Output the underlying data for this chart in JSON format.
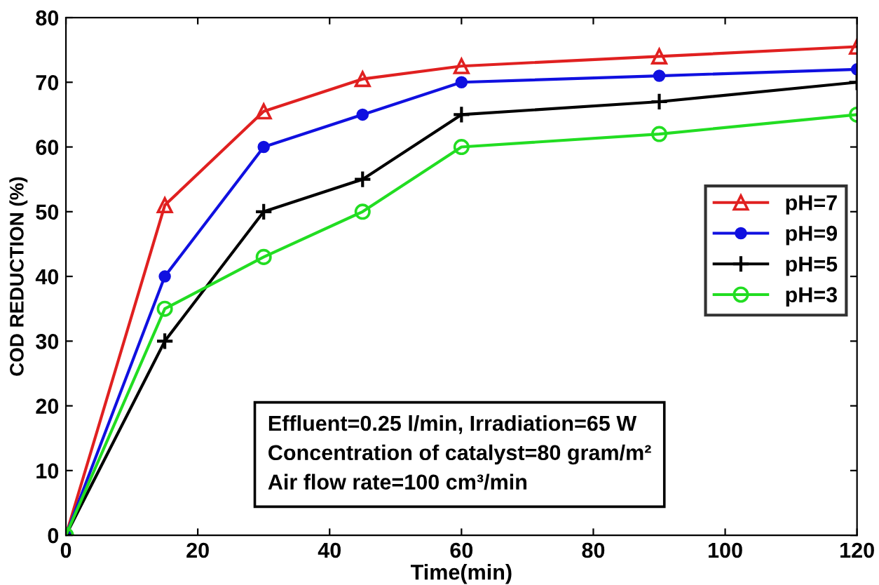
{
  "chart_data": {
    "type": "line",
    "xlabel": "Time(min)",
    "ylabel": "COD REDUCTION (%)",
    "x": [
      0,
      15,
      30,
      45,
      60,
      90,
      120
    ],
    "series": [
      {
        "name": "pH=7",
        "color": "#e02020",
        "marker": "triangle",
        "values": [
          0,
          51,
          65.5,
          70.5,
          72.5,
          74,
          75.5
        ]
      },
      {
        "name": "pH=9",
        "color": "#1010e0",
        "marker": "circle_filled",
        "values": [
          0,
          40,
          60,
          65,
          70,
          71,
          72
        ]
      },
      {
        "name": "pH=5",
        "color": "#000000",
        "marker": "plus",
        "values": [
          0,
          30,
          50,
          55,
          65,
          67,
          70
        ]
      },
      {
        "name": "pH=3",
        "color": "#22dd22",
        "marker": "circle",
        "values": [
          0,
          35,
          43,
          50,
          60,
          62,
          65
        ]
      }
    ],
    "xlim": [
      0,
      120
    ],
    "ylim": [
      0,
      80
    ],
    "xticks": [
      0,
      20,
      40,
      60,
      80,
      100,
      120
    ],
    "yticks": [
      0,
      10,
      20,
      30,
      40,
      50,
      60,
      70,
      80
    ],
    "grid": false,
    "legend": "right",
    "annotations": [
      "Effluent=0.25 l/min, Irradiation=65 W",
      "Concentration of catalyst=80 gram/m²",
      "Air flow rate=100 cm³/min"
    ]
  }
}
